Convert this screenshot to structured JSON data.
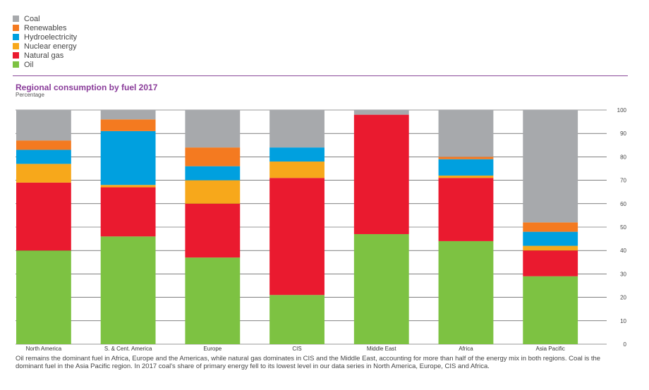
{
  "legend": [
    {
      "label": "Coal",
      "color": "#a7a9ac"
    },
    {
      "label": "Renewables",
      "color": "#f47a20"
    },
    {
      "label": "Hydroelectricity",
      "color": "#00a0df"
    },
    {
      "label": "Nuclear energy",
      "color": "#f7a81b"
    },
    {
      "label": "Natural gas",
      "color": "#ea1a2f"
    },
    {
      "label": "Oil",
      "color": "#7dc242"
    }
  ],
  "chart_data": {
    "type": "bar",
    "stacked": true,
    "title": "Regional consumption by fuel 2017",
    "subtitle": "Percentage",
    "ylim": [
      0,
      100
    ],
    "yticks": [
      0,
      10,
      20,
      30,
      40,
      50,
      60,
      70,
      80,
      90,
      100
    ],
    "categories": [
      "North America",
      "S. & Cent. America",
      "Europe",
      "CIS",
      "Middle East",
      "Africa",
      "Asia Pacific"
    ],
    "series": [
      {
        "name": "Oil",
        "color": "#7dc242",
        "values": [
          40,
          46,
          37,
          21,
          47,
          44,
          29
        ]
      },
      {
        "name": "Natural gas",
        "color": "#ea1a2f",
        "values": [
          29,
          21,
          23,
          50,
          51,
          27,
          11
        ]
      },
      {
        "name": "Nuclear energy",
        "color": "#f7a81b",
        "values": [
          8,
          1,
          10,
          7,
          0,
          1,
          2
        ]
      },
      {
        "name": "Hydroelectricity",
        "color": "#00a0df",
        "values": [
          6,
          23,
          6,
          6,
          0,
          7,
          6
        ]
      },
      {
        "name": "Renewables",
        "color": "#f47a20",
        "values": [
          4,
          5,
          8,
          0,
          0,
          1,
          4
        ]
      },
      {
        "name": "Coal",
        "color": "#a7a9ac",
        "values": [
          13,
          4,
          16,
          16,
          2,
          20,
          48
        ]
      }
    ]
  },
  "caption": "Oil remains the dominant fuel in Africa, Europe and the Americas, while natural gas dominates in CIS and the Middle East, accounting for more than half of the energy mix in both regions. Coal is the dominant fuel in the Asia Pacific region. In 2017 coal's share of primary energy fell to its lowest level in our data series in North America, Europe, CIS and Africa."
}
